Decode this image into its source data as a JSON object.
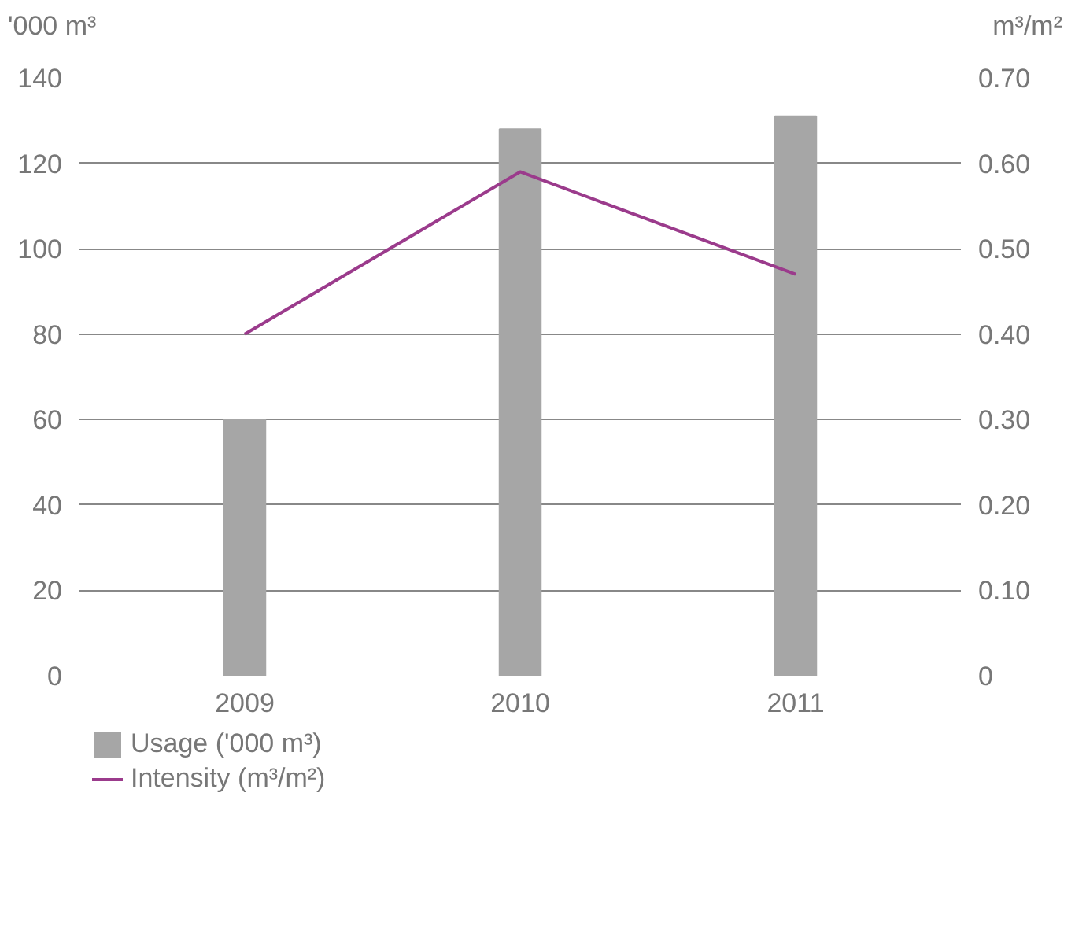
{
  "chart_data": {
    "type": "bar",
    "ylabel": "'000 m³",
    "y2label": "m³/m²",
    "categories": [
      "2009",
      "2010",
      "2011"
    ],
    "series": [
      {
        "name": "Usage ('000 m³)",
        "color": "#a6a6a6",
        "values": [
          60,
          128,
          131
        ]
      },
      {
        "name": "Intensity (m³/m²)",
        "type": "line",
        "axis": "y2",
        "color": "#9b3b8c",
        "values": [
          0.4,
          0.59,
          0.47
        ]
      }
    ],
    "ylim": [
      0,
      140
    ],
    "yticks": [
      0,
      20,
      40,
      60,
      80,
      100,
      120,
      140
    ],
    "y2lim": [
      0,
      0.7
    ],
    "y2ticks": [
      {
        "value": 0,
        "label": "0"
      },
      {
        "value": 0.1,
        "label": "0.10"
      },
      {
        "value": 0.2,
        "label": "0.20"
      },
      {
        "value": 0.3,
        "label": "0.30"
      },
      {
        "value": 0.4,
        "label": "0.40"
      },
      {
        "value": 0.5,
        "label": "0.50"
      },
      {
        "value": 0.6,
        "label": "0.60"
      },
      {
        "value": 0.7,
        "label": "0.70"
      }
    ],
    "grid": "y",
    "legend": "bottom"
  }
}
